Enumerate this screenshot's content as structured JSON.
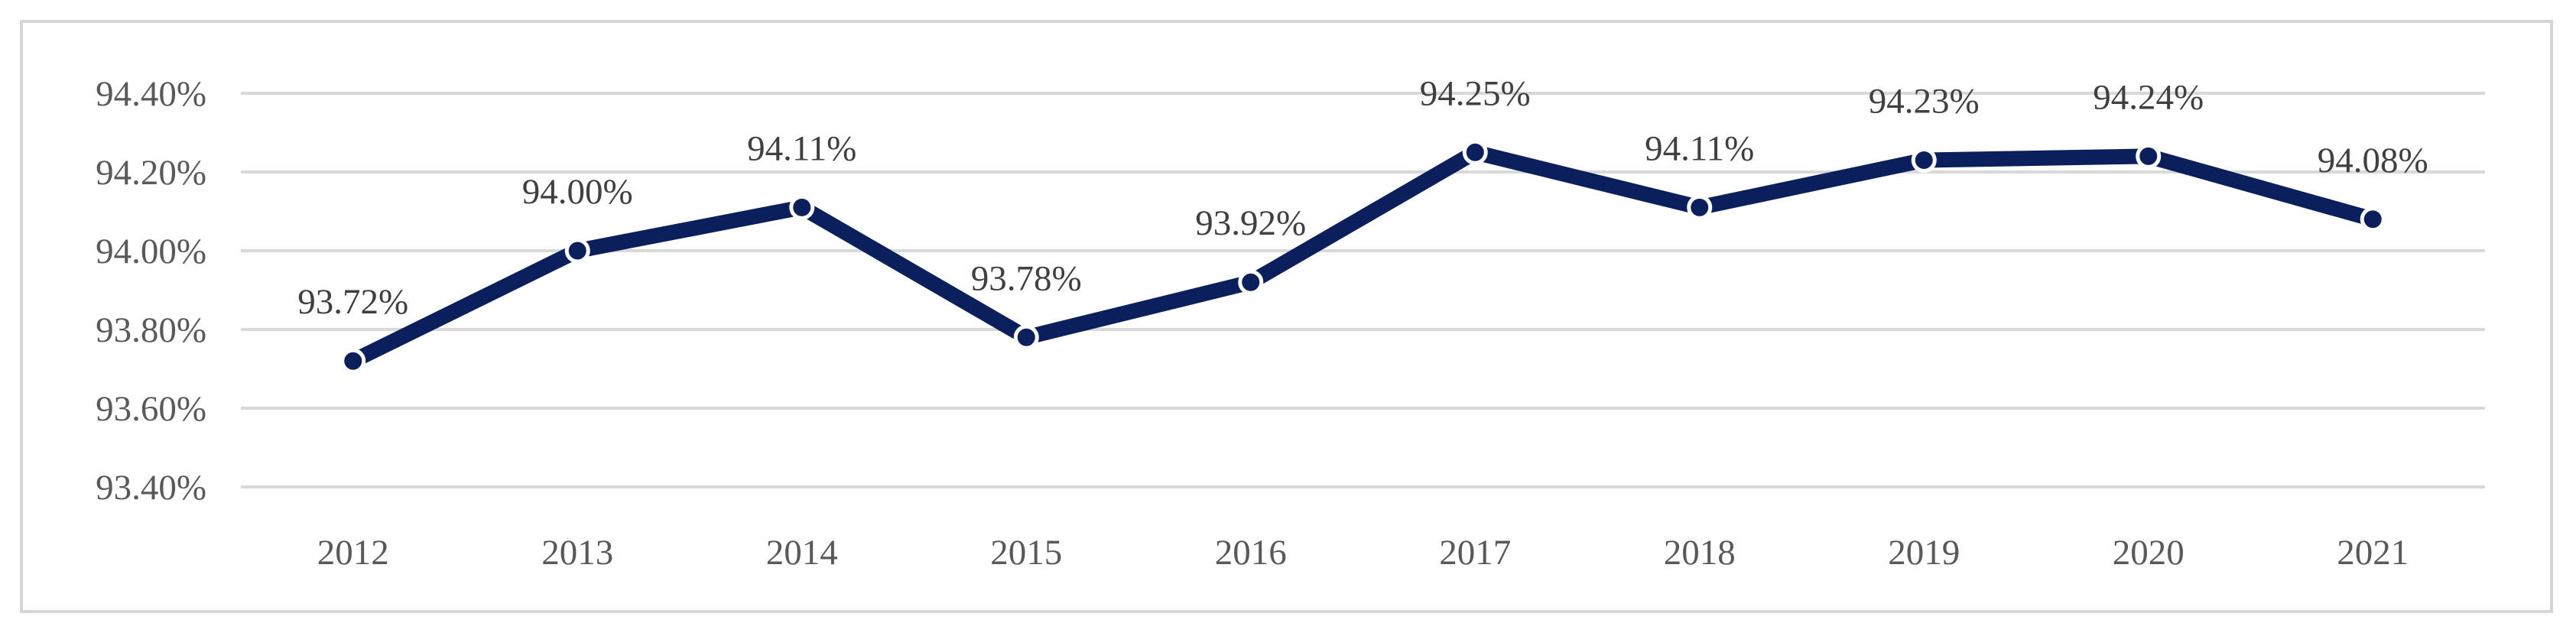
{
  "chart_data": {
    "type": "line",
    "title": "",
    "xlabel": "",
    "ylabel": "",
    "categories": [
      "2012",
      "2013",
      "2014",
      "2015",
      "2016",
      "2017",
      "2018",
      "2019",
      "2020",
      "2021"
    ],
    "series": [
      {
        "values": [
          93.72,
          94.0,
          94.11,
          93.78,
          93.92,
          94.25,
          94.11,
          94.23,
          94.24,
          94.08
        ],
        "labels": [
          "93.72%",
          "94.00%",
          "94.11%",
          "93.78%",
          "93.92%",
          "94.25%",
          "94.11%",
          "94.23%",
          "94.24%",
          "94.08%"
        ],
        "color": "#0b1f5c"
      }
    ],
    "ylim": [
      93.4,
      94.4
    ],
    "yticks": [
      93.4,
      93.6,
      93.8,
      94.0,
      94.2,
      94.4
    ],
    "ytick_labels": [
      "93.40%",
      "93.60%",
      "93.80%",
      "94.00%",
      "94.20%",
      "94.40%"
    ],
    "grid": true,
    "legend": "none"
  }
}
